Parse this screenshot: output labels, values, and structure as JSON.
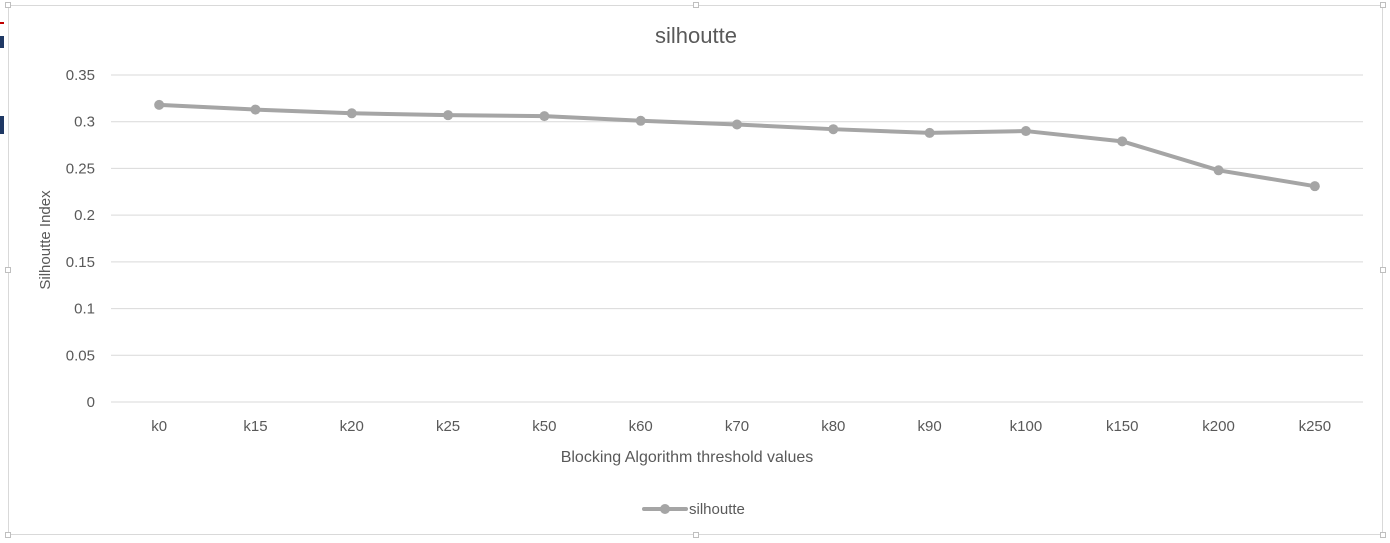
{
  "chart_data": {
    "type": "line",
    "title": "silhoutte",
    "xlabel": "Blocking Algorithm threshold values",
    "ylabel": "Silhoutte Index",
    "categories": [
      "k0",
      "k15",
      "k20",
      "k25",
      "k50",
      "k60",
      "k70",
      "k80",
      "k90",
      "k100",
      "k150",
      "k200",
      "k250"
    ],
    "series": [
      {
        "name": "silhoutte",
        "values": [
          0.318,
          0.313,
          0.309,
          0.307,
          0.306,
          0.301,
          0.297,
          0.292,
          0.288,
          0.29,
          0.279,
          0.248,
          0.231
        ],
        "color": "#a5a5a5"
      }
    ],
    "ylim": [
      0,
      0.35
    ],
    "yticks": [
      "0",
      "0.05",
      "0.1",
      "0.15",
      "0.2",
      "0.25",
      "0.3",
      "0.35"
    ],
    "grid": true,
    "legend": "bottom",
    "colors": {
      "grid": "#d9d9d9",
      "text": "#595959",
      "title": "#595959"
    }
  }
}
